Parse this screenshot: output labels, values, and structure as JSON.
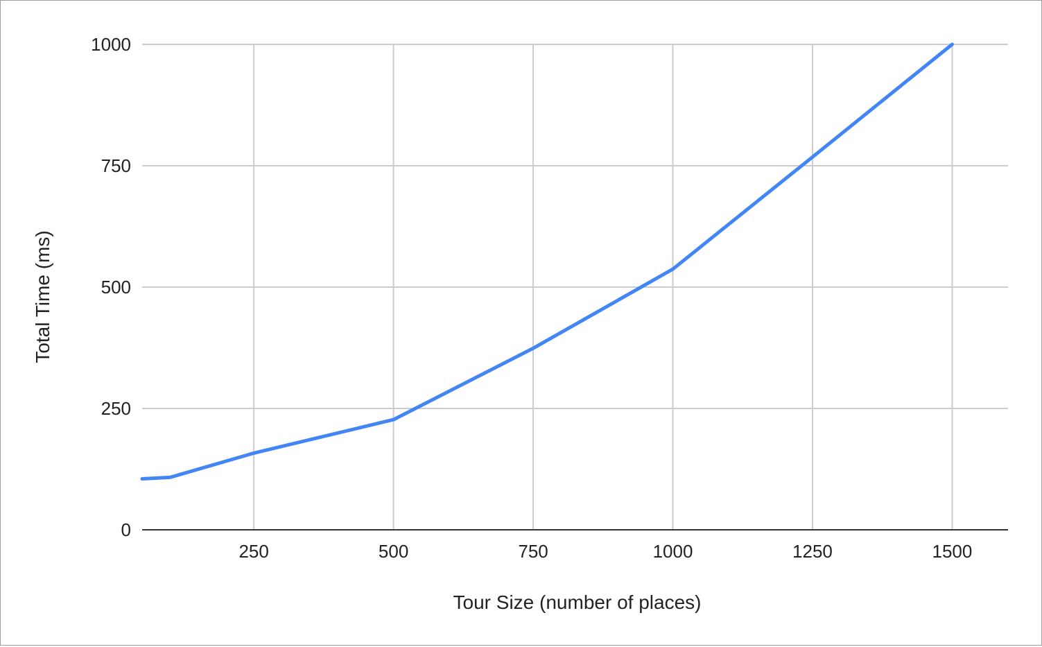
{
  "chart_data": {
    "type": "line",
    "title": "",
    "xlabel": "Tour Size (number of places)",
    "ylabel": "Total Time (ms)",
    "xlim": [
      50,
      1600
    ],
    "ylim": [
      0,
      1000
    ],
    "x_ticks": [
      250,
      500,
      750,
      1000,
      1250,
      1500
    ],
    "y_ticks": [
      0,
      250,
      500,
      750,
      1000
    ],
    "grid": true,
    "legend": "none",
    "series": [
      {
        "color": "#4285f4",
        "x": [
          50,
          100,
          250,
          500,
          750,
          1000,
          1250,
          1500
        ],
        "y": [
          105,
          108,
          158,
          227,
          374,
          537,
          768,
          1000
        ]
      }
    ]
  }
}
